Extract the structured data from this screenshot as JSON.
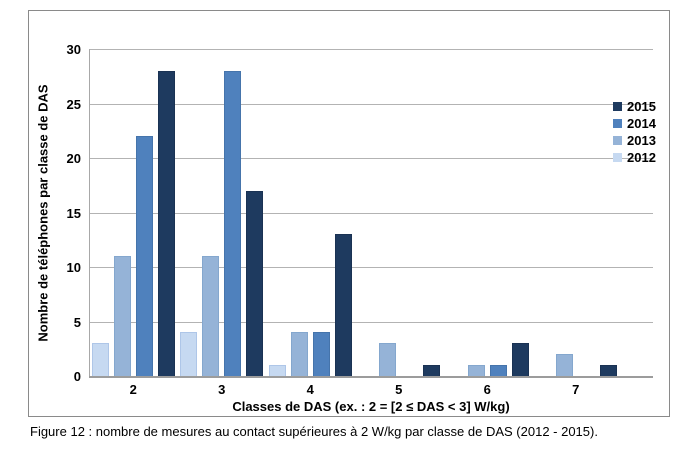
{
  "figure": {
    "caption": "Figure 12 : nombre de mesures au contact supérieures à 2 W/kg par classe de DAS (2012 - 2015)."
  },
  "chart_data": {
    "type": "bar",
    "title": "",
    "categories": [
      "2",
      "3",
      "4",
      "5",
      "6",
      "7"
    ],
    "series": [
      {
        "name": "2012",
        "color": "#c6d9f1",
        "border": "#aec6e8",
        "values": [
          3,
          4,
          1,
          0,
          0,
          0
        ]
      },
      {
        "name": "2013",
        "color": "#95b3d7",
        "border": "#84a7ce",
        "values": [
          11,
          11,
          4,
          3,
          1,
          2
        ]
      },
      {
        "name": "2014",
        "color": "#4f81bd",
        "border": "#4574ab",
        "values": [
          22,
          28,
          4,
          0,
          1,
          0
        ]
      },
      {
        "name": "2015",
        "color": "#1e3a5f",
        "border": "#1a3253",
        "values": [
          28,
          17,
          13,
          1,
          3,
          1
        ]
      }
    ],
    "xlabel": "Classes de DAS (ex. : 2 = [2 ≤ DAS < 3] W/kg)",
    "ylabel": "Nombre de téléphones par classe de DAS",
    "ylim": [
      0,
      30
    ],
    "yticks": [
      0,
      5,
      10,
      15,
      20,
      25,
      30
    ],
    "grid": true,
    "legend_position": "right",
    "legend_order": [
      "2015",
      "2014",
      "2013",
      "2012"
    ]
  }
}
